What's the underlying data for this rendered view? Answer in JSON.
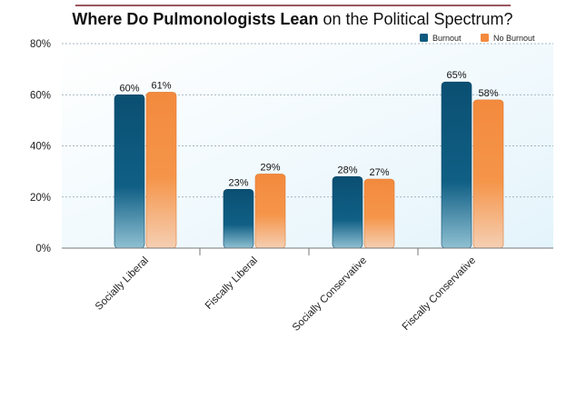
{
  "chart_data": {
    "type": "bar",
    "title_bold": "Where Do Pulmonologists Lean",
    "title_rest": " on the Political Spectrum?",
    "categories": [
      "Socially Liberal",
      "Fiscally Liberal",
      "Socially Conservative",
      "Fiscally Conservative"
    ],
    "series": [
      {
        "name": "Burnout",
        "values": [
          60,
          23,
          28,
          65
        ],
        "labels": [
          "60%",
          "23%",
          "28%",
          "65%"
        ],
        "color": "#0e5a7e"
      },
      {
        "name": "No Burnout",
        "values": [
          61,
          29,
          27,
          58
        ],
        "labels": [
          "61%",
          "29%",
          "27%",
          "58%"
        ],
        "color": "#f38a3d"
      }
    ],
    "ylim": [
      0,
      80
    ],
    "yticks": [
      "0%",
      "20%",
      "40%",
      "60%",
      "80%"
    ],
    "ytick_values": [
      0,
      20,
      40,
      60,
      80
    ],
    "grid": true,
    "legend_position": "top-right",
    "plot_background": "#e9f6fc",
    "title_rule_color": "#7a1f2b"
  }
}
